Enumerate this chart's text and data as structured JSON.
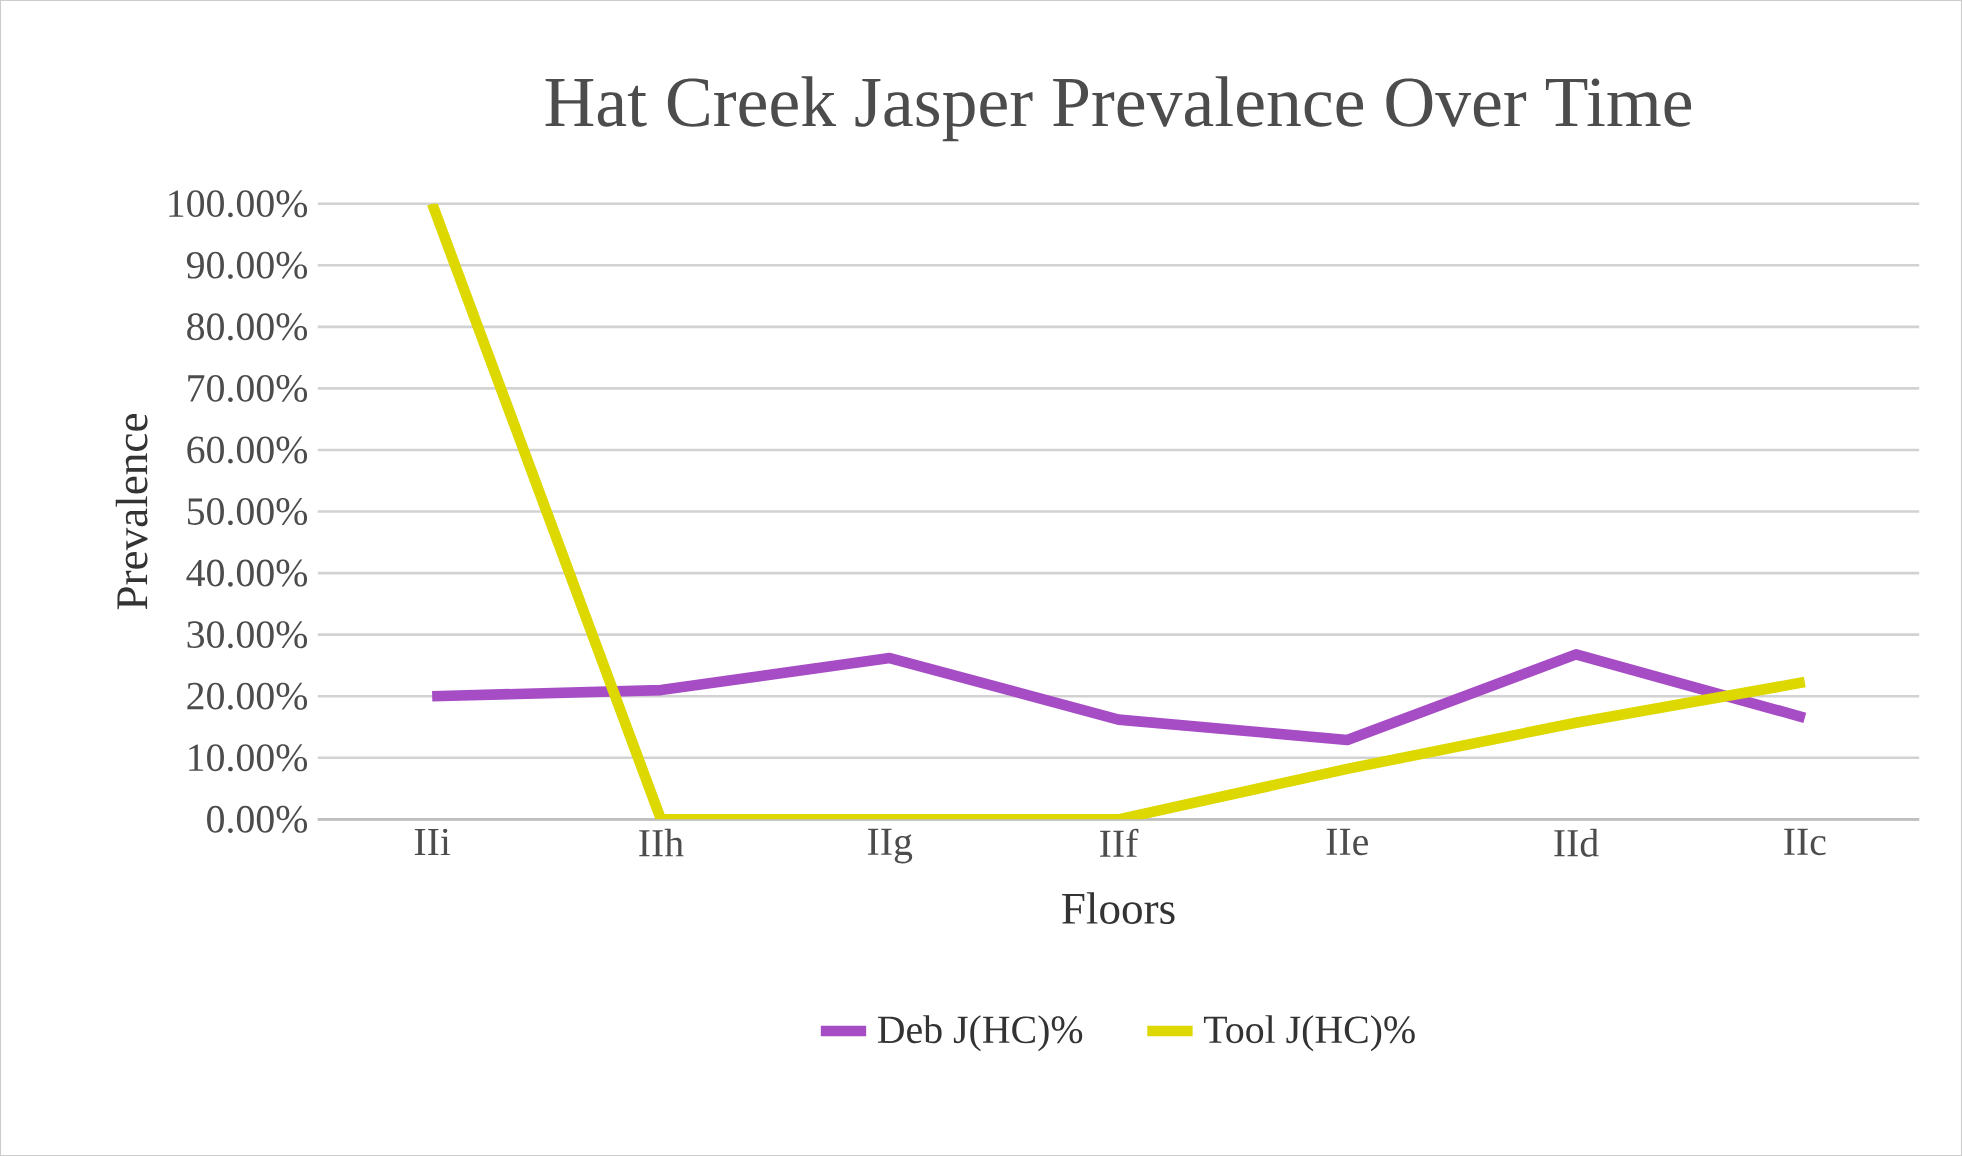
{
  "chart_data": {
    "type": "line",
    "title": "Hat Creek Jasper Prevalence Over Time",
    "xlabel": "Floors",
    "ylabel": "Prevalence",
    "categories": [
      "IIi",
      "IIh",
      "IIg",
      "IIf",
      "IIe",
      "IId",
      "IIc"
    ],
    "series": [
      {
        "name": "Deb J(HC)%",
        "color": "#a64cc4",
        "values": [
          20,
          21,
          26.2,
          16.2,
          12.9,
          26.8,
          16.5
        ]
      },
      {
        "name": "Tool J(HC)%",
        "color": "#dcd800",
        "values": [
          100,
          0,
          0,
          0,
          8.2,
          15.7,
          22.3
        ]
      }
    ],
    "ylim": [
      0,
      100
    ],
    "yticks": [
      {
        "value": 0,
        "label": "0.00%"
      },
      {
        "value": 10,
        "label": "10.00%"
      },
      {
        "value": 20,
        "label": "20.00%"
      },
      {
        "value": 30,
        "label": "30.00%"
      },
      {
        "value": 40,
        "label": "40.00%"
      },
      {
        "value": 50,
        "label": "50.00%"
      },
      {
        "value": 60,
        "label": "60.00%"
      },
      {
        "value": 70,
        "label": "70.00%"
      },
      {
        "value": 80,
        "label": "80.00%"
      },
      {
        "value": 90,
        "label": "90.00%"
      },
      {
        "value": 100,
        "label": "100.00%"
      }
    ],
    "grid": "y",
    "legend": "bottom",
    "marker": "none",
    "line_style": "solid"
  }
}
